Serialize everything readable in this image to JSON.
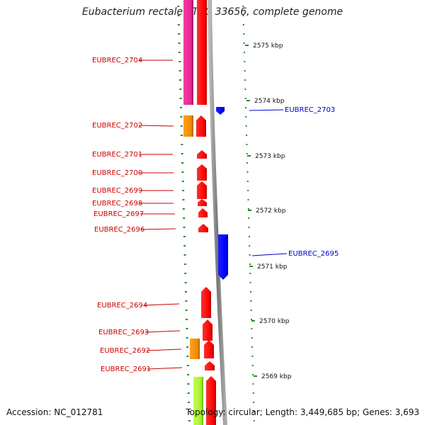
{
  "title": "Eubacterium rectale ATCC 33656, complete genome",
  "accession": "Accession: NC_012781",
  "topology": "Topology: circular; Length: 3,449,685 bp; Genes: 3,693",
  "scale_ticks": [
    "2575 kbp",
    "2574 kbp",
    "2573 kbp",
    "2572 kbp",
    "2571 kbp",
    "2570 kbp",
    "2569 kbp"
  ],
  "genes": [
    {
      "label": "EUBREC_2704",
      "strand": "reverse"
    },
    {
      "label": "EUBREC_2703",
      "strand": "forward"
    },
    {
      "label": "EUBREC_2702",
      "strand": "reverse"
    },
    {
      "label": "EUBREC_2701",
      "strand": "reverse"
    },
    {
      "label": "EUBREC_2700",
      "strand": "reverse"
    },
    {
      "label": "EUBREC_2699",
      "strand": "reverse"
    },
    {
      "label": "EUBREC_2698",
      "strand": "reverse"
    },
    {
      "label": "EUBREC_2697",
      "strand": "reverse"
    },
    {
      "label": "EUBREC_2696",
      "strand": "reverse"
    },
    {
      "label": "EUBREC_2695",
      "strand": "forward"
    },
    {
      "label": "EUBREC_2694",
      "strand": "reverse"
    },
    {
      "label": "EUBREC_2693",
      "strand": "reverse"
    },
    {
      "label": "EUBREC_2692",
      "strand": "reverse"
    },
    {
      "label": "EUBREC_2691",
      "strand": "reverse"
    }
  ],
  "colors": {
    "reverse_label": "#cc0000",
    "forward_label": "#0000cc",
    "cds": "#ff0000",
    "cds_forward": "#0000ff",
    "track_pink": "#e8258f",
    "track_orange": "#f08c00",
    "track_green": "#a6f030",
    "backbone": "#888888",
    "tick": "#2a8a2a"
  }
}
